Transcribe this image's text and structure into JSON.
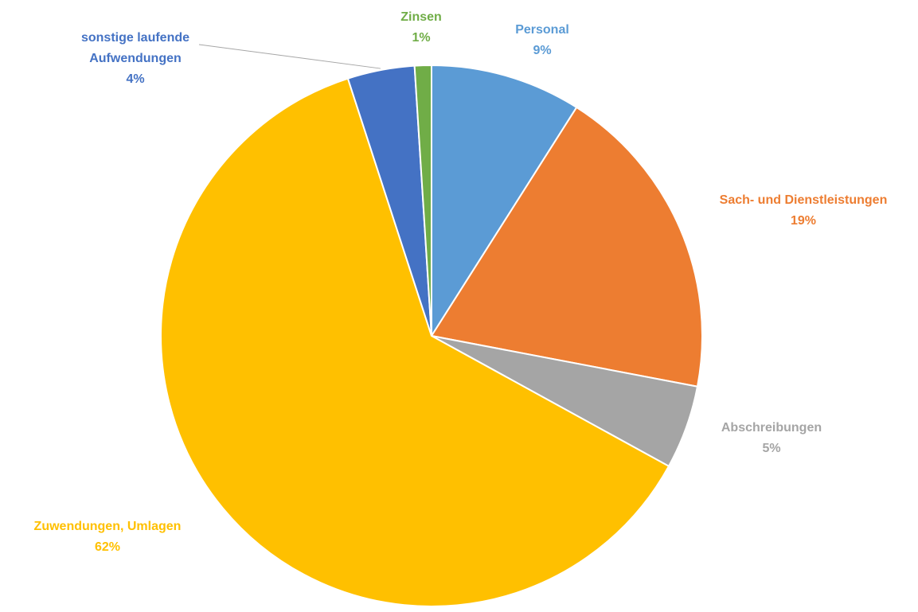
{
  "chart_data": {
    "type": "pie",
    "title": "",
    "unit": "%",
    "start_angle_deg": 0,
    "direction": "clockwise",
    "slices": [
      {
        "label": "Personal",
        "value": 9,
        "display": "9%",
        "color": "#5B9BD5"
      },
      {
        "label": "Sach- und Dienstleistungen",
        "value": 19,
        "display": "19%",
        "color": "#ED7D31"
      },
      {
        "label": "Abschreibungen",
        "value": 5,
        "display": "5%",
        "color": "#A5A5A5"
      },
      {
        "label": "Zuwendungen, Umlagen",
        "value": 62,
        "display": "62%",
        "color": "#FFC000"
      },
      {
        "label": "sonstige laufende Aufwendungen",
        "label_lines": [
          "sonstige laufende",
          "Aufwendungen"
        ],
        "value": 4,
        "display": "4%",
        "color": "#4472C4"
      },
      {
        "label": "Zinsen",
        "value": 1,
        "display": "1%",
        "color": "#70AD47"
      }
    ]
  }
}
